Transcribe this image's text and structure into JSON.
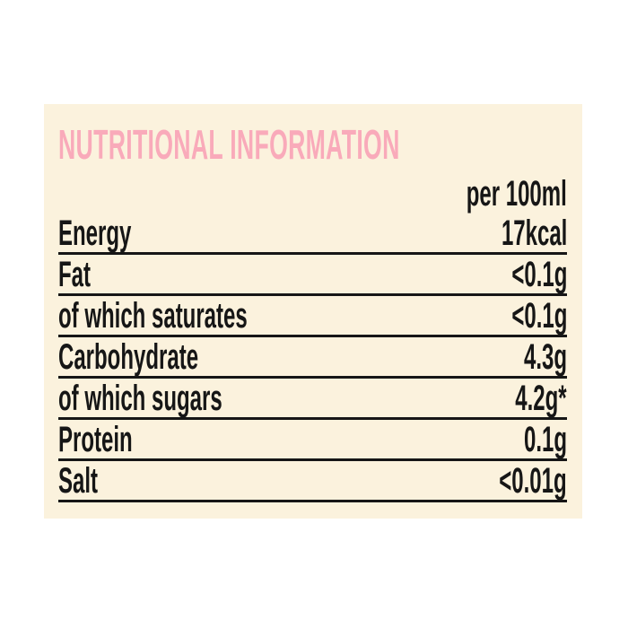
{
  "page": {
    "background_color": "#ffffff"
  },
  "panel": {
    "background_color": "#fbf2dd",
    "title": "NUTRITIONAL INFORMATION",
    "title_color": "#f9aaba",
    "text_color": "#161616",
    "rule_color": "#161616",
    "column_header": "per 100ml",
    "rows": [
      {
        "label": "Energy",
        "value": "17kcal"
      },
      {
        "label": "Fat",
        "value": "<0.1g"
      },
      {
        "label": "of which saturates",
        "value": "<0.1g"
      },
      {
        "label": "Carbohydrate",
        "value": "4.3g"
      },
      {
        "label": "of which sugars",
        "value": "4.2g*"
      },
      {
        "label": "Protein",
        "value": "0.1g"
      },
      {
        "label": "Salt",
        "value": "<0.01g"
      }
    ]
  }
}
